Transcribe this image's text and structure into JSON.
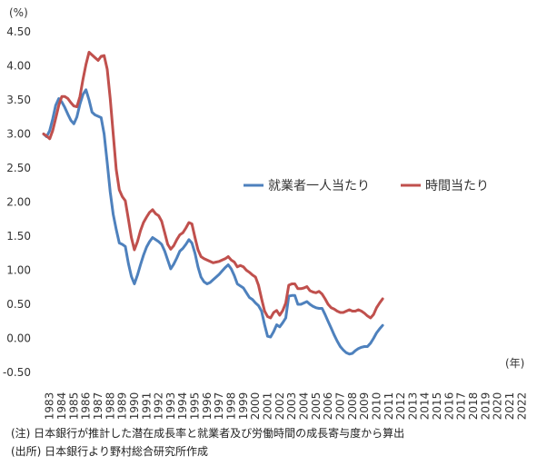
{
  "chart_data": {
    "type": "line",
    "y_unit": "(%)",
    "x_unit": "(年)",
    "ylim": [
      -0.5,
      4.5
    ],
    "yticks": [
      "4.50",
      "4.00",
      "3.50",
      "3.00",
      "2.50",
      "2.00",
      "1.50",
      "1.00",
      "0.50",
      "0.00",
      "-0.50"
    ],
    "grid": false,
    "legend_position": "center-right",
    "x_labels": [
      "1983",
      "1984",
      "1985",
      "1986",
      "1987",
      "1988",
      "1989",
      "1990",
      "1991",
      "1992",
      "1993",
      "1994",
      "1995",
      "1996",
      "1997",
      "1998",
      "1999",
      "2000",
      "2001",
      "2002",
      "2003",
      "2004",
      "2005",
      "2006",
      "2007",
      "2008",
      "2009",
      "2010",
      "2011",
      "2012",
      "2013",
      "2014",
      "2015",
      "2016",
      "2017",
      "2018",
      "2019",
      "2020",
      "2021",
      "2022"
    ],
    "x_start": 1983.0,
    "x_step": 0.25,
    "series": [
      {
        "name": "就業者一人当たり",
        "color": "#4E81BD",
        "values": [
          3.0,
          2.96,
          3.05,
          3.22,
          3.42,
          3.52,
          3.47,
          3.39,
          3.29,
          3.2,
          3.15,
          3.25,
          3.44,
          3.58,
          3.65,
          3.5,
          3.32,
          3.28,
          3.26,
          3.24,
          3.0,
          2.58,
          2.15,
          1.82,
          1.6,
          1.4,
          1.38,
          1.35,
          1.1,
          0.91,
          0.8,
          0.93,
          1.08,
          1.22,
          1.34,
          1.42,
          1.48,
          1.45,
          1.42,
          1.38,
          1.28,
          1.15,
          1.02,
          1.09,
          1.18,
          1.28,
          1.32,
          1.38,
          1.45,
          1.4,
          1.25,
          1.05,
          0.9,
          0.83,
          0.8,
          0.82,
          0.86,
          0.9,
          0.94,
          0.99,
          1.04,
          1.08,
          1.02,
          0.92,
          0.8,
          0.77,
          0.74,
          0.67,
          0.6,
          0.57,
          0.52,
          0.48,
          0.4,
          0.2,
          0.03,
          0.02,
          0.1,
          0.2,
          0.17,
          0.23,
          0.3,
          0.62,
          0.63,
          0.63,
          0.5,
          0.5,
          0.52,
          0.54,
          0.5,
          0.47,
          0.45,
          0.44,
          0.44,
          0.35,
          0.25,
          0.15,
          0.05,
          -0.04,
          -0.12,
          -0.17,
          -0.21,
          -0.23,
          -0.22,
          -0.18,
          -0.15,
          -0.13,
          -0.12,
          -0.12,
          -0.07,
          0.0,
          0.08,
          0.14,
          0.19
        ]
      },
      {
        "name": "時間当たり",
        "color": "#C0504D",
        "values": [
          3.0,
          2.97,
          2.93,
          3.05,
          3.23,
          3.42,
          3.55,
          3.55,
          3.52,
          3.46,
          3.41,
          3.4,
          3.55,
          3.8,
          4.02,
          4.2,
          4.16,
          4.12,
          4.08,
          4.14,
          4.15,
          3.95,
          3.52,
          3.0,
          2.48,
          2.18,
          2.08,
          2.02,
          1.75,
          1.48,
          1.3,
          1.42,
          1.58,
          1.7,
          1.78,
          1.85,
          1.89,
          1.83,
          1.8,
          1.72,
          1.55,
          1.38,
          1.31,
          1.36,
          1.45,
          1.52,
          1.55,
          1.62,
          1.7,
          1.68,
          1.48,
          1.3,
          1.2,
          1.17,
          1.15,
          1.13,
          1.11,
          1.12,
          1.13,
          1.15,
          1.17,
          1.2,
          1.15,
          1.12,
          1.05,
          1.07,
          1.05,
          1.0,
          0.97,
          0.93,
          0.9,
          0.78,
          0.58,
          0.4,
          0.32,
          0.3,
          0.38,
          0.41,
          0.34,
          0.41,
          0.52,
          0.78,
          0.8,
          0.8,
          0.73,
          0.73,
          0.74,
          0.76,
          0.7,
          0.68,
          0.67,
          0.69,
          0.65,
          0.58,
          0.5,
          0.45,
          0.43,
          0.4,
          0.38,
          0.38,
          0.4,
          0.42,
          0.4,
          0.4,
          0.42,
          0.4,
          0.37,
          0.33,
          0.3,
          0.35,
          0.45,
          0.52,
          0.58
        ]
      }
    ]
  },
  "notes": [
    "(注) 日本銀行が推計した潜在成長率と就業者及び労働時間の成長寄与度から算出",
    "(出所) 日本銀行より野村総合研究所作成"
  ]
}
